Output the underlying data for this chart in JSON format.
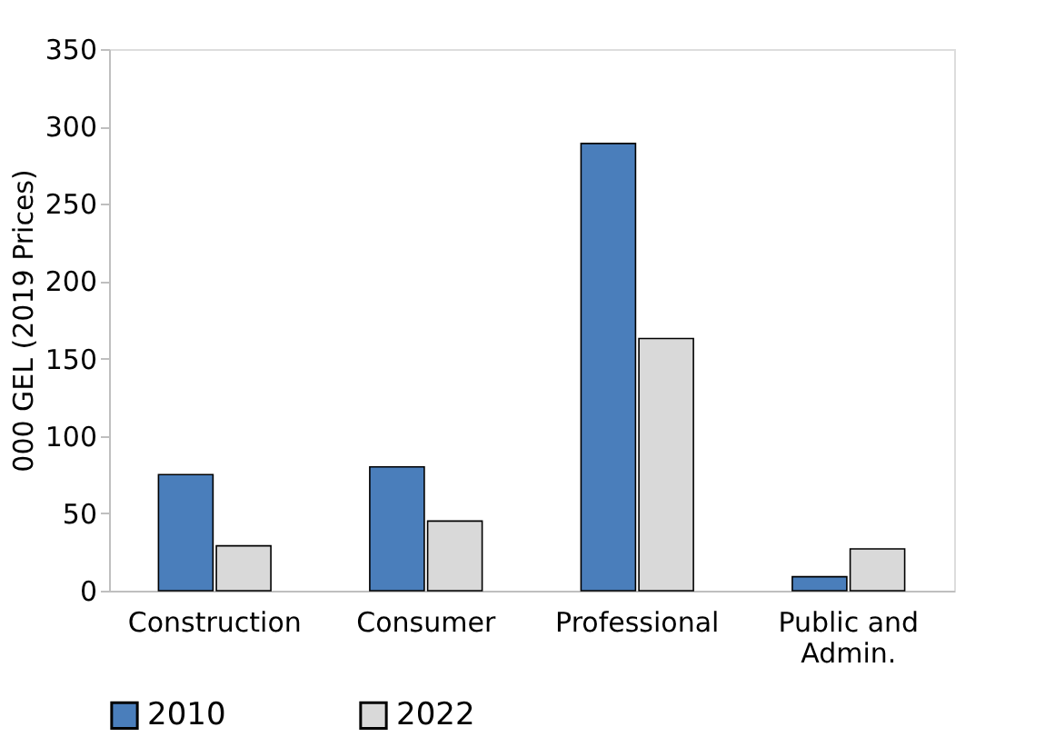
{
  "chart_data": {
    "type": "bar",
    "ylabel": "000 GEL (2019 Prices)",
    "categories": [
      "Construction",
      "Consumer",
      "Professional",
      "Public and Admin."
    ],
    "series": [
      {
        "name": "2010",
        "color": "#4a7ebb",
        "values": [
          75,
          80,
          289,
          9
        ]
      },
      {
        "name": "2022",
        "color": "#d9d9d9",
        "values": [
          29,
          45,
          163,
          27
        ]
      }
    ],
    "ylim": [
      0,
      350
    ],
    "yticks": [
      0,
      50,
      100,
      150,
      200,
      250,
      300,
      350
    ],
    "grid": false,
    "legend": "bottom"
  }
}
